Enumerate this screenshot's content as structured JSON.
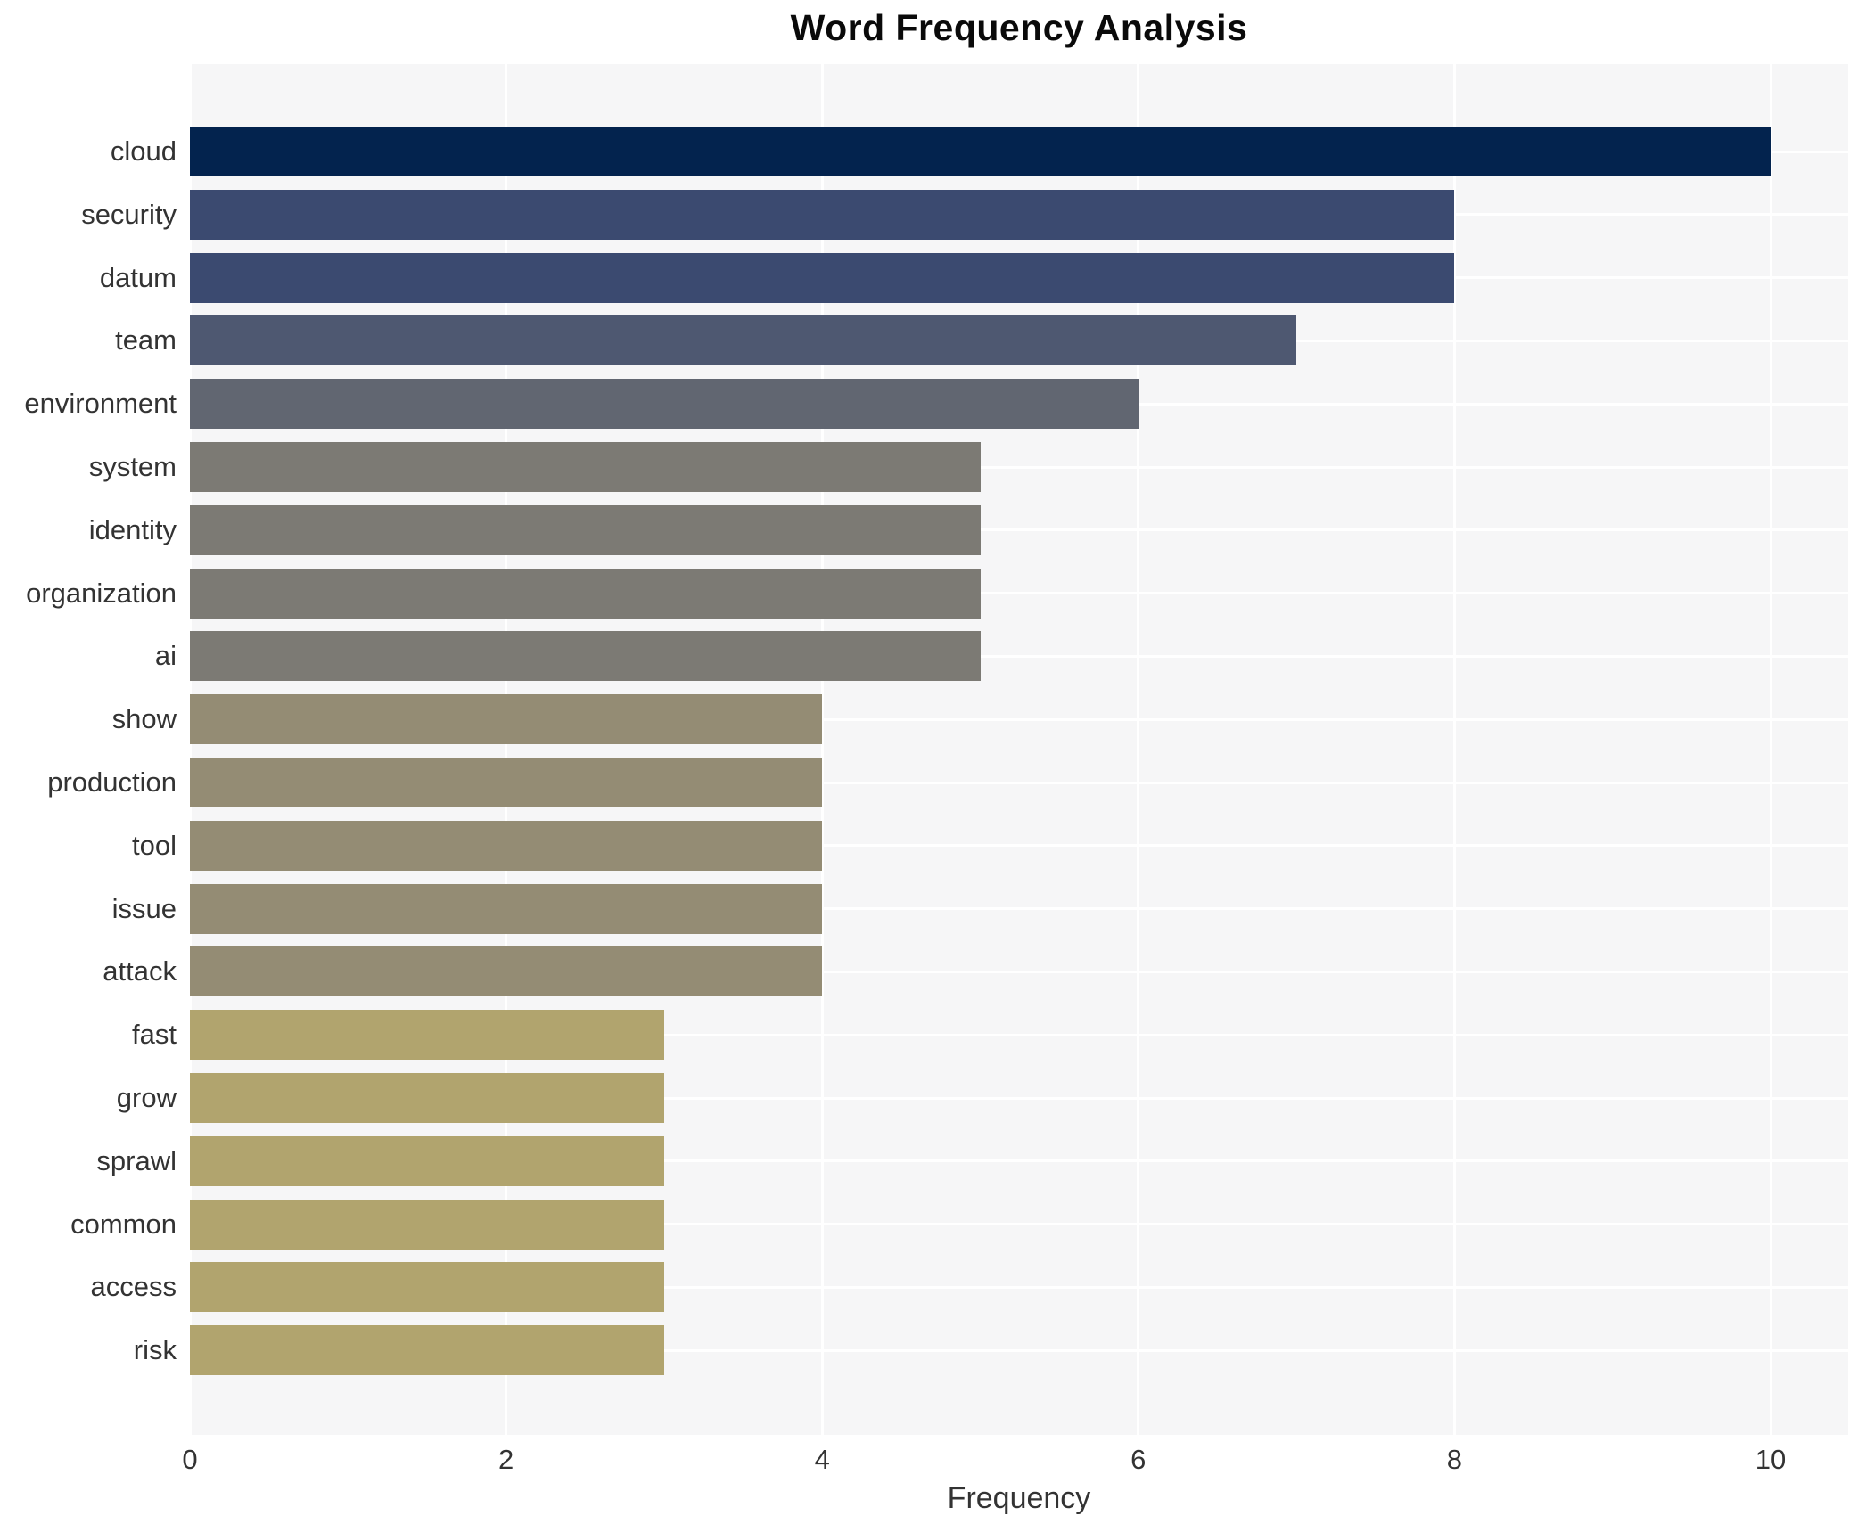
{
  "title": "Word Frequency Analysis",
  "chart_data": {
    "type": "bar",
    "orientation": "horizontal",
    "title": "Word Frequency Analysis",
    "xlabel": "Frequency",
    "ylabel": "",
    "legend": "none",
    "grid": "on (white gridlines on light gray panel, vertical at x ticks, horizontal at category centers)",
    "x_ticks": [
      0,
      2,
      4,
      6,
      8,
      10
    ],
    "xlim": [
      0,
      10.5
    ],
    "categories": [
      "cloud",
      "security",
      "datum",
      "team",
      "environment",
      "system",
      "identity",
      "organization",
      "ai",
      "show",
      "production",
      "tool",
      "issue",
      "attack",
      "fast",
      "grow",
      "sprawl",
      "common",
      "access",
      "risk"
    ],
    "values": [
      10,
      8,
      8,
      7,
      6,
      5,
      5,
      5,
      5,
      4,
      4,
      4,
      4,
      4,
      3,
      3,
      3,
      3,
      3,
      3
    ],
    "bar_colors": [
      "#03234e",
      "#3b4a70",
      "#3b4a70",
      "#4e5871",
      "#616671",
      "#7c7a74",
      "#7c7a74",
      "#7c7a74",
      "#7c7a74",
      "#948c74",
      "#948c74",
      "#948c74",
      "#948c74",
      "#948c74",
      "#b1a46e",
      "#b1a46e",
      "#b1a46e",
      "#b1a46e",
      "#b1a46e",
      "#b1a46e"
    ]
  },
  "colors": {
    "page_background": "#ffffff",
    "plot_background": "#f6f6f7",
    "gridline": "#ffffff",
    "title_text": "#0a0a0a",
    "axis_text": "#333333"
  }
}
